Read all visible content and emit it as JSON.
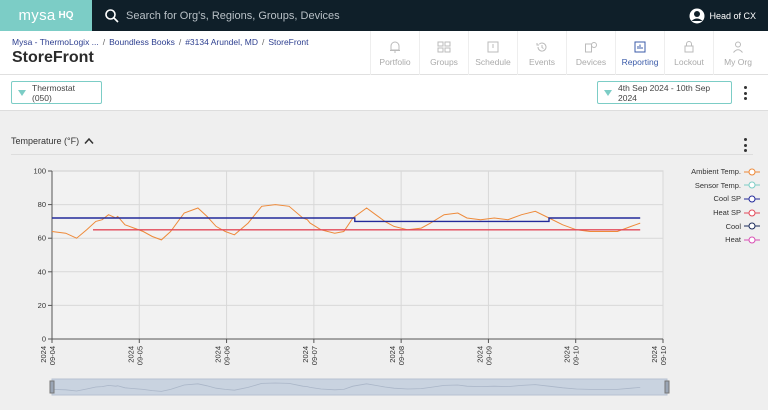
{
  "app": {
    "logo": "mysa",
    "logo_suffix": "HQ"
  },
  "search": {
    "placeholder": "Search for Org's, Regions, Groups, Devices"
  },
  "user": {
    "name": "Head of CX"
  },
  "breadcrumb": [
    "Mysa - ThermoLogix ...",
    "Boundless Books",
    "#3134 Arundel, MD",
    "StoreFront"
  ],
  "page": {
    "title": "StoreFront"
  },
  "nav": [
    {
      "label": "Portfolio",
      "icon": "bell-icon"
    },
    {
      "label": "Groups",
      "icon": "groups-icon"
    },
    {
      "label": "Schedule",
      "icon": "calendar-icon"
    },
    {
      "label": "Events",
      "icon": "history-icon"
    },
    {
      "label": "Devices",
      "icon": "devices-icon"
    },
    {
      "label": "Reporting",
      "icon": "chart-icon",
      "active": true
    },
    {
      "label": "Lockout",
      "icon": "lock-icon"
    },
    {
      "label": "My Org",
      "icon": "person-icon"
    }
  ],
  "filters": {
    "device": "Thermostat (050)",
    "date_range": "4th Sep 2024 - 10th Sep 2024"
  },
  "chart_panel": {
    "title": "Temperature (°F)"
  },
  "colors": {
    "accent": "#7ccdc6",
    "navy": "#0f1f29",
    "link": "#2c3e8f",
    "ambient": "#ee8a3a",
    "sensor": "#7ccdc6",
    "cool_sp": "#232a9a",
    "heat_sp": "#e34a5a",
    "cool": "#1a2a5a",
    "heat": "#d84fb4"
  },
  "chart_data": {
    "type": "line",
    "ylim": [
      0,
      100
    ],
    "yticks": [
      0,
      20,
      40,
      60,
      80,
      100
    ],
    "x_ticks": [
      "09-04\n2024",
      "09-05\n2024",
      "09-06\n2024",
      "09-07\n2024",
      "09-08\n2024",
      "09-09\n2024",
      "09-10\n2024",
      "09-10\n2024"
    ],
    "x_range_days": [
      0,
      6.7
    ],
    "grid": true,
    "legend_position": "right",
    "series": [
      {
        "name": "Ambient Temp.",
        "color": "#ee8a3a",
        "x": [
          0,
          0.15,
          0.27,
          0.38,
          0.48,
          0.55,
          0.62,
          0.7,
          0.72,
          0.8,
          0.9,
          1.0,
          1.1,
          1.2,
          1.3,
          1.45,
          1.6,
          1.7,
          1.8,
          1.9,
          2.0,
          2.15,
          2.3,
          2.45,
          2.6,
          2.75,
          2.8,
          2.83,
          2.95,
          3.1,
          3.2,
          3.3,
          3.45,
          3.55,
          3.65,
          3.75,
          3.9,
          4.05,
          4.15,
          4.3,
          4.45,
          4.55,
          4.7,
          4.85,
          5.0,
          5.15,
          5.3,
          5.45,
          5.6,
          5.75,
          5.9,
          6.05,
          6.2,
          6.35,
          6.45
        ],
        "values": [
          64,
          63,
          60,
          65,
          70,
          71,
          74,
          72,
          73,
          68,
          66,
          64,
          61,
          59,
          64,
          75,
          78,
          73,
          67,
          64,
          62,
          69,
          79,
          80,
          79,
          72,
          71,
          69,
          65,
          63,
          64,
          72,
          78,
          74,
          70,
          67,
          65,
          66,
          69,
          74,
          75,
          72,
          71,
          72,
          71,
          74,
          76,
          72,
          68,
          65,
          64,
          64,
          64,
          67,
          69
        ]
      },
      {
        "name": "Sensor Temp.",
        "color": "#7ccdc6",
        "x": [],
        "values": []
      },
      {
        "name": "Cool SP",
        "color": "#232a9a",
        "x": [
          0,
          0.45,
          0.45,
          3.32,
          3.32,
          5.45,
          5.45,
          6.45
        ],
        "values": [
          72,
          72,
          72,
          72,
          70,
          70,
          72,
          72
        ]
      },
      {
        "name": "Heat SP",
        "color": "#e34a5a",
        "x": [
          0.45,
          6.45
        ],
        "values": [
          65,
          65
        ]
      },
      {
        "name": "Cool",
        "color": "#1a2a5a",
        "x": [],
        "values": []
      },
      {
        "name": "Heat",
        "color": "#d84fb4",
        "x": [],
        "values": []
      }
    ]
  }
}
